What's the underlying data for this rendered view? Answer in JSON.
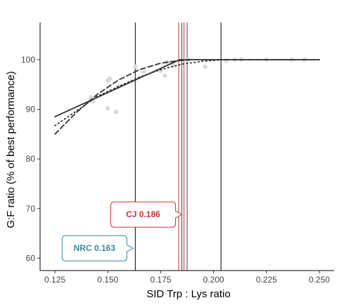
{
  "chart_data": {
    "type": "scatter",
    "xlabel": "SID Trp : Lys ratio",
    "ylabel": "G:F ratio (% of best performance)",
    "xlim": [
      0.118,
      0.257
    ],
    "ylim": [
      57.5,
      107.5
    ],
    "x_ticks": [
      0.125,
      0.15,
      0.175,
      0.2,
      0.225,
      0.25
    ],
    "x_tick_labels": [
      "0.125",
      "0.150",
      "0.175",
      "0.200",
      "0.225",
      "0.250"
    ],
    "y_ticks": [
      60,
      70,
      80,
      90,
      100
    ],
    "y_tick_labels": [
      "60",
      "70",
      "80",
      "90",
      "100"
    ],
    "grid": false,
    "points": [
      {
        "x": 0.142,
        "y": 92.4
      },
      {
        "x": 0.143,
        "y": 91.6
      },
      {
        "x": 0.15,
        "y": 90.2
      },
      {
        "x": 0.15,
        "y": 95.8
      },
      {
        "x": 0.151,
        "y": 96.2
      },
      {
        "x": 0.154,
        "y": 89.5
      },
      {
        "x": 0.155,
        "y": 94.6
      },
      {
        "x": 0.163,
        "y": 98.6
      },
      {
        "x": 0.167,
        "y": 97.6
      },
      {
        "x": 0.175,
        "y": 97.8
      },
      {
        "x": 0.177,
        "y": 96.8
      },
      {
        "x": 0.178,
        "y": 99.5
      },
      {
        "x": 0.18,
        "y": 99.4
      },
      {
        "x": 0.181,
        "y": 98.8
      },
      {
        "x": 0.188,
        "y": 100.0
      },
      {
        "x": 0.196,
        "y": 98.6
      },
      {
        "x": 0.206,
        "y": 99.8
      },
      {
        "x": 0.21,
        "y": 100.0
      },
      {
        "x": 0.213,
        "y": 100.0
      },
      {
        "x": 0.225,
        "y": 100.0
      },
      {
        "x": 0.237,
        "y": 100.0
      },
      {
        "x": 0.243,
        "y": 100.0
      }
    ],
    "lines": [
      {
        "style": "solid",
        "color": "#333333",
        "x": [
          0.125,
          0.184,
          0.25
        ],
        "y": [
          88.5,
          100.0,
          100.0
        ]
      },
      {
        "style": "dashed",
        "color": "#333333",
        "x": [
          0.125,
          0.135,
          0.145,
          0.155,
          0.165,
          0.175,
          0.183,
          0.19,
          0.25
        ],
        "y": [
          85.0,
          89.3,
          93.0,
          95.9,
          98.0,
          99.3,
          99.8,
          100.0,
          100.0
        ]
      },
      {
        "style": "dotted",
        "color": "#333333",
        "x": [
          0.125,
          0.135,
          0.145,
          0.155,
          0.165,
          0.175,
          0.185,
          0.195,
          0.205,
          0.25
        ],
        "y": [
          86.7,
          89.6,
          92.6,
          94.6,
          96.5,
          98.0,
          99.1,
          99.7,
          100.0,
          100.0
        ]
      }
    ],
    "vlines": [
      {
        "x": 0.163,
        "color": "#000000"
      },
      {
        "x": 0.1835,
        "color": "#cc3333"
      },
      {
        "x": 0.185,
        "color": "#444444"
      },
      {
        "x": 0.186,
        "color": "#cc3333"
      },
      {
        "x": 0.1875,
        "color": "#444444"
      },
      {
        "x": 0.2035,
        "color": "#000000"
      }
    ],
    "callouts": [
      {
        "text": "CJ 0.186",
        "x": 0.186,
        "y": 68.8,
        "color": "#cc3333"
      },
      {
        "text": "NRC 0.163",
        "x": 0.163,
        "y": 62.0,
        "color": "#3a8aa0"
      }
    ],
    "colors": {
      "points": "#d9d9d9",
      "axis": "#000000",
      "cj": "#cc3333",
      "nrc": "#3a8aa0"
    }
  }
}
